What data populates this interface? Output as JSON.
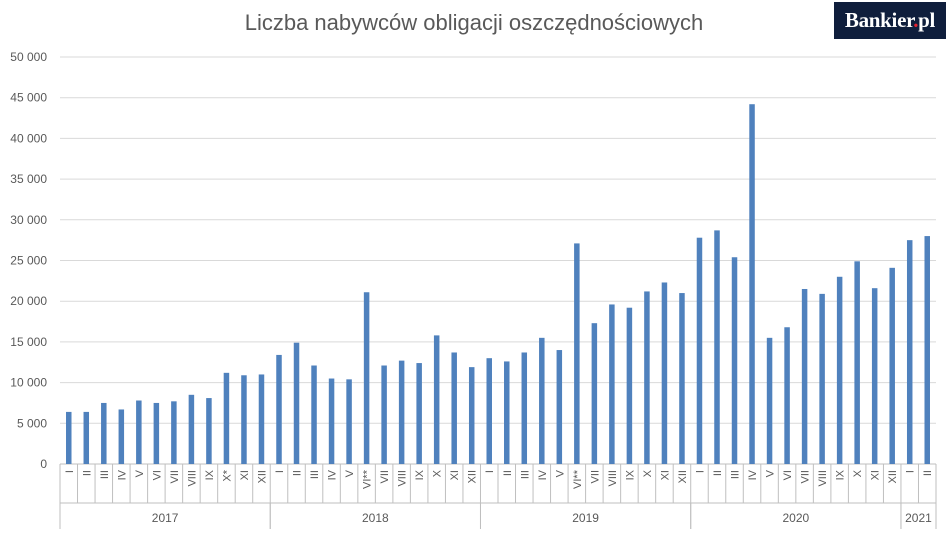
{
  "brand": {
    "name": "Bankier",
    "dot": ".",
    "suffix": "pl"
  },
  "colors": {
    "bar": "#4f81bd",
    "grid": "#d9d9d9",
    "axis": "#bfbfbf",
    "text": "#595959"
  },
  "chart_data": {
    "type": "bar",
    "title": "Liczba nabywców obligacji oszczędnościowych",
    "xlabel": "",
    "ylabel": "",
    "ylim": [
      0,
      50000
    ],
    "yticks": [
      0,
      5000,
      10000,
      15000,
      20000,
      25000,
      30000,
      35000,
      40000,
      45000,
      50000
    ],
    "ytick_labels": [
      "0",
      "5 000",
      "10 000",
      "15 000",
      "20 000",
      "25 000",
      "30 000",
      "35 000",
      "40 000",
      "45 000",
      "50 000"
    ],
    "grid": true,
    "legend": "none",
    "groups": [
      {
        "label": "2017",
        "categories": [
          "I",
          "II",
          "III",
          "IV",
          "V",
          "VI",
          "VII",
          "VIII",
          "IX",
          "X*",
          "XI",
          "XII"
        ],
        "values": [
          6400,
          6400,
          7500,
          6700,
          7800,
          7500,
          7700,
          8500,
          8100,
          11200,
          10900,
          11000
        ]
      },
      {
        "label": "2018",
        "categories": [
          "I",
          "II",
          "III",
          "IV",
          "V",
          "VI**",
          "VII",
          "VIII",
          "IX",
          "X",
          "XI",
          "XII"
        ],
        "values": [
          13400,
          14900,
          12100,
          10500,
          10400,
          21100,
          12100,
          12700,
          12400,
          15800,
          13700,
          11900
        ]
      },
      {
        "label": "2019",
        "categories": [
          "I",
          "II",
          "III",
          "IV",
          "V",
          "VI**",
          "VII",
          "VIII",
          "IX",
          "X",
          "XI",
          "XII"
        ],
        "values": [
          13000,
          12600,
          13700,
          15500,
          14000,
          27100,
          17300,
          19600,
          19200,
          21200,
          22300,
          21000
        ]
      },
      {
        "label": "2020",
        "categories": [
          "I",
          "II",
          "III",
          "IV",
          "V",
          "VI",
          "VII",
          "VIII",
          "IX",
          "X",
          "XI",
          "XII"
        ],
        "values": [
          27800,
          28700,
          25400,
          44200,
          15500,
          16800,
          21500,
          20900,
          23000,
          24900,
          21600,
          24100
        ]
      },
      {
        "label": "2021",
        "categories": [
          "I",
          "II"
        ],
        "values": [
          27500,
          28000
        ]
      }
    ]
  }
}
